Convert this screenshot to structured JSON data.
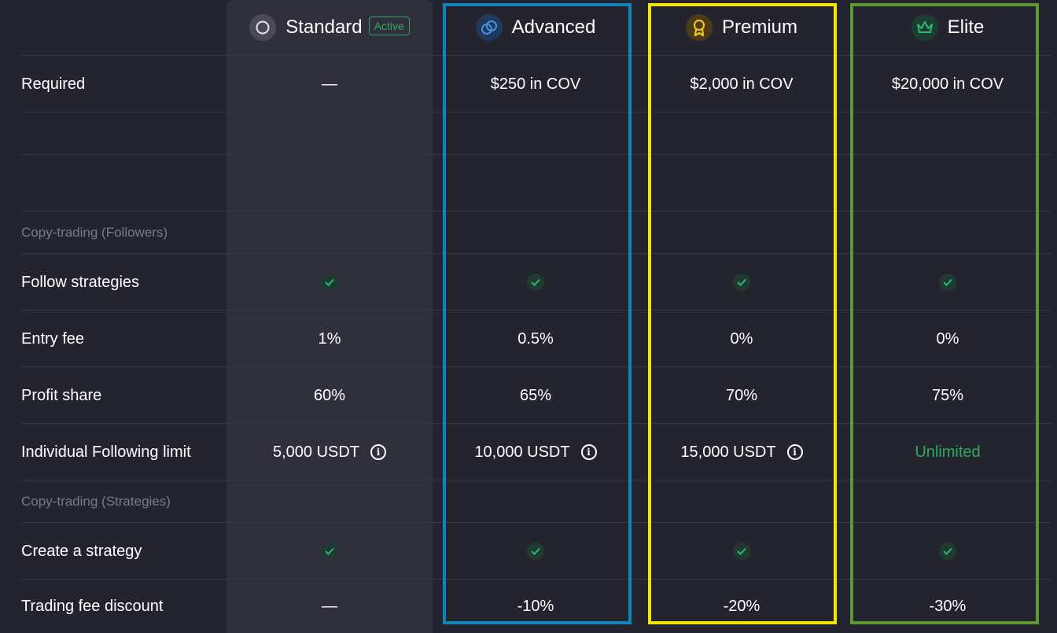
{
  "tiers": [
    {
      "name": "Standard",
      "icon": "circle-icon",
      "badge": "Active"
    },
    {
      "name": "Advanced",
      "icon": "linked-rings-icon"
    },
    {
      "name": "Premium",
      "icon": "award-medal-icon"
    },
    {
      "name": "Elite",
      "icon": "crown-icon"
    }
  ],
  "highlight_colors": {
    "advanced": "#0e86b8",
    "premium": "#f2e40b",
    "elite": "#5b9a30"
  },
  "rows": {
    "required": {
      "label": "Required",
      "values": [
        "—",
        "$250 in COV",
        "$2,000 in COV",
        "$20,000 in COV"
      ]
    },
    "section_followers": "Copy-trading (Followers)",
    "follow_strategies": {
      "label": "Follow strategies"
    },
    "entry_fee": {
      "label": "Entry fee",
      "values": [
        "1%",
        "0.5%",
        "0%",
        "0%"
      ]
    },
    "profit_share": {
      "label": "Profit share",
      "values": [
        "60%",
        "65%",
        "70%",
        "75%"
      ]
    },
    "following_limit": {
      "label": "Individual Following limit",
      "values": [
        "5,000 USDT",
        "10,000 USDT",
        "15,000 USDT",
        "Unlimited"
      ]
    },
    "section_strategies": "Copy-trading (Strategies)",
    "create_strategy": {
      "label": "Create a strategy"
    },
    "trading_fee_discount": {
      "label": "Trading fee discount",
      "values": [
        "—",
        "-10%",
        "-20%",
        "-30%"
      ]
    }
  }
}
